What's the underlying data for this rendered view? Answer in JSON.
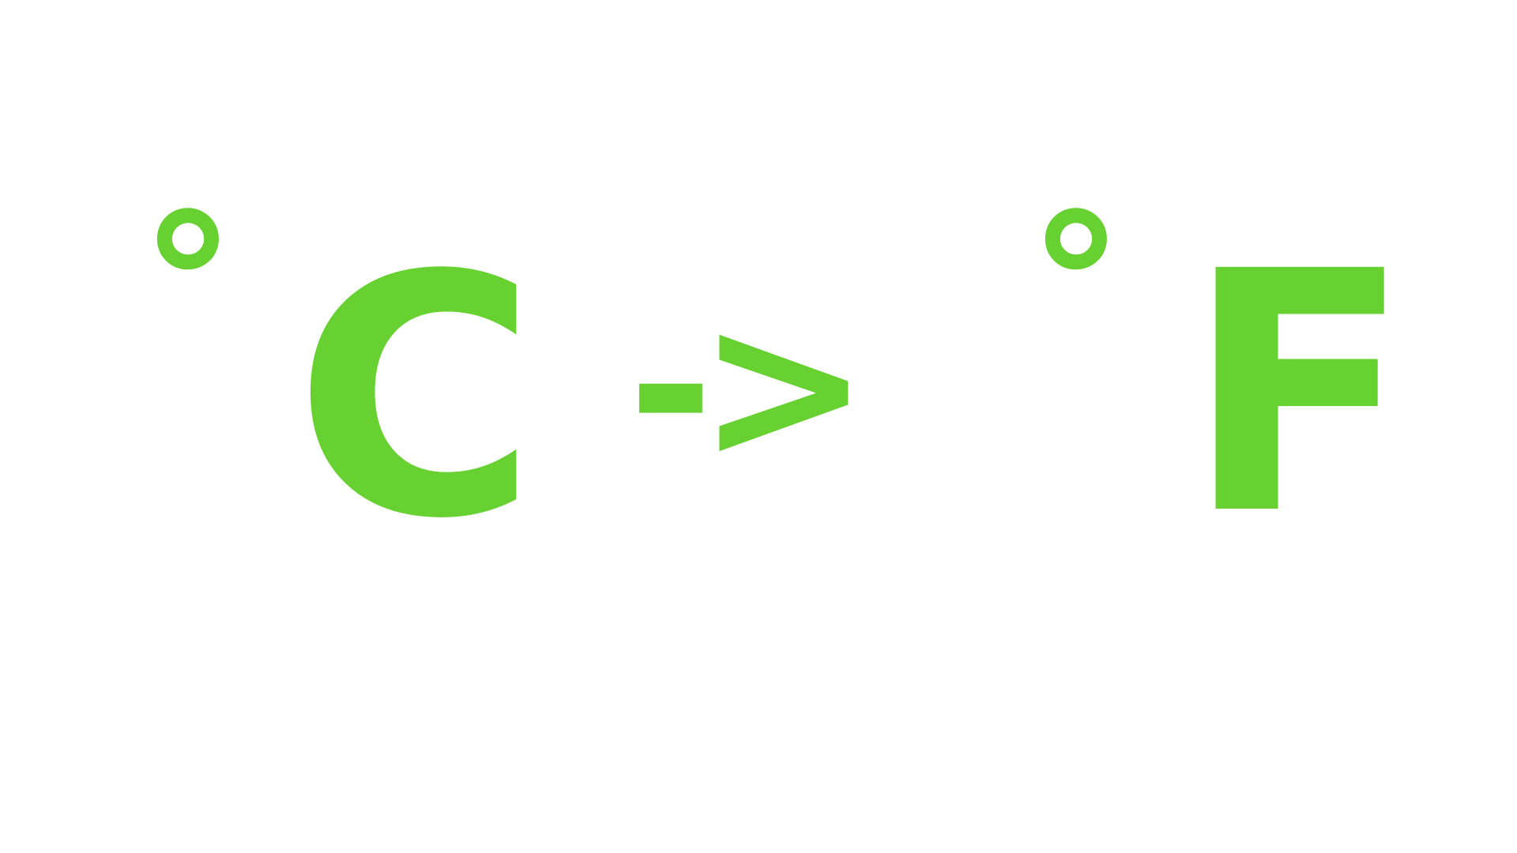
{
  "expression": {
    "from_degree": "°",
    "from_unit": "C",
    "arrow": "->",
    "to_degree": "°",
    "to_unit": "F"
  },
  "colors": {
    "text": "#66d131",
    "background": "#ffffff"
  }
}
